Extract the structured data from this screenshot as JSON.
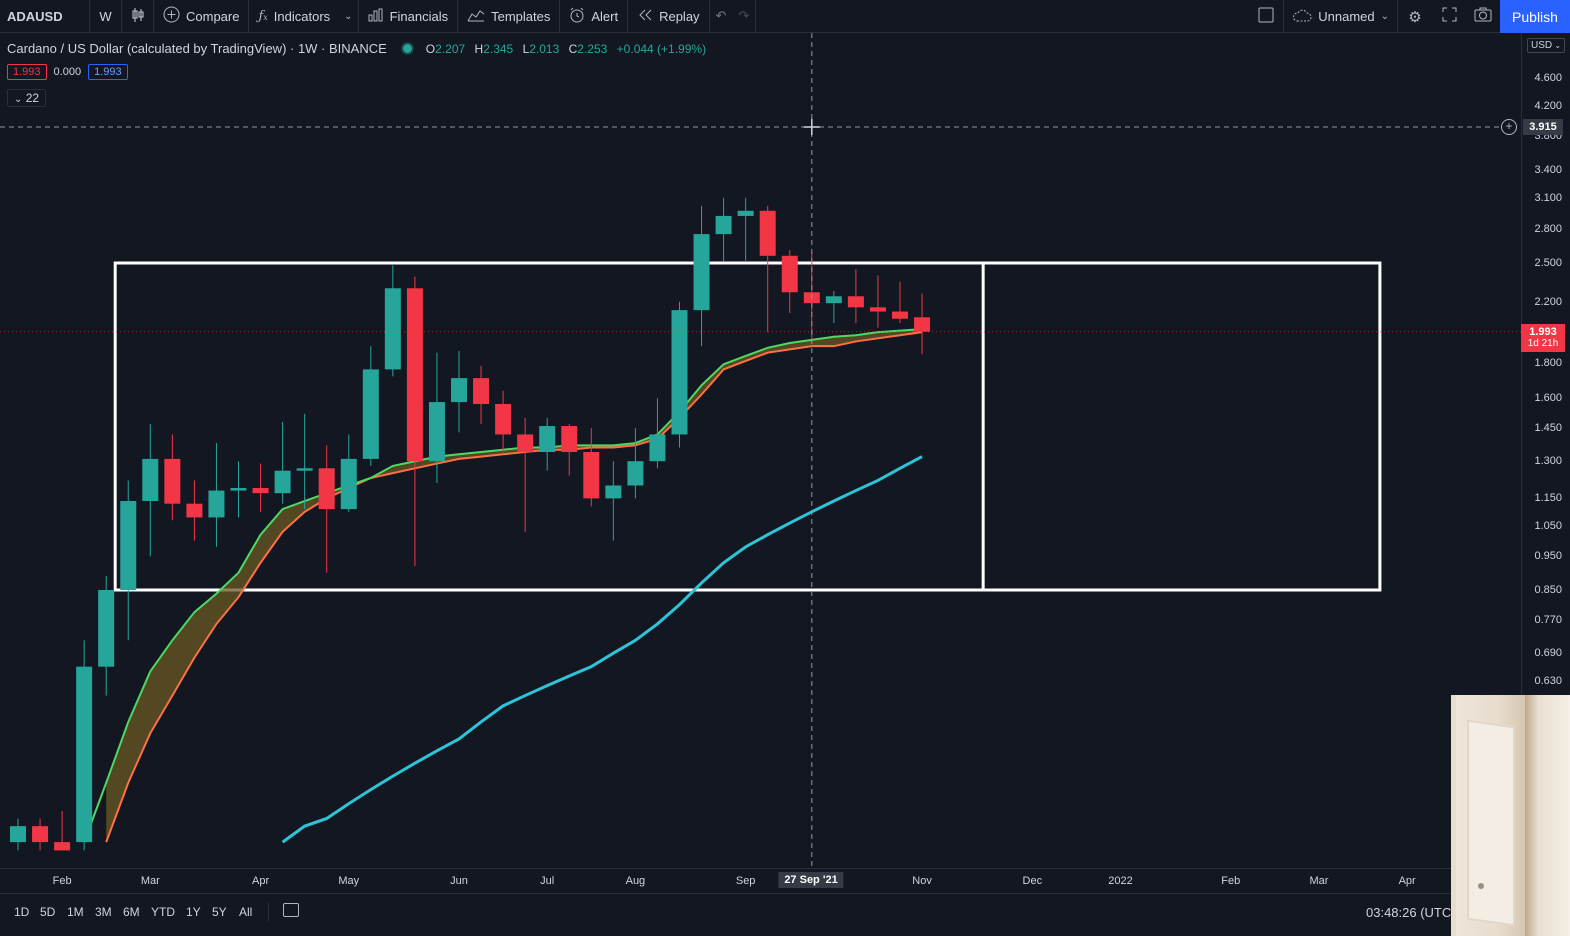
{
  "toolbar": {
    "symbol": "ADAUSD",
    "interval": "W",
    "compare_label": "Compare",
    "indicators_label": "Indicators",
    "financials_label": "Financials",
    "templates_label": "Templates",
    "alert_label": "Alert",
    "replay_label": "Replay",
    "layout_name": "Unnamed",
    "publish_label": "Publish"
  },
  "legend": {
    "title": "Cardano / US Dollar (calculated by TradingView) · 1W · BINANCE",
    "open_key": "O",
    "open": "2.207",
    "high_key": "H",
    "high": "2.345",
    "low_key": "L",
    "low": "2.013",
    "close_key": "C",
    "close": "2.253",
    "change": "+0.044 (+1.99%)",
    "indicator_values": [
      "1.993",
      "0.000",
      "1.993"
    ],
    "collapsed_count": "22"
  },
  "price_axis": {
    "currency": "USD",
    "crosshair_price": "3.915",
    "current_price": "1.993",
    "countdown": "1d 21h"
  },
  "time_axis": {
    "crosshair_date": "27 Sep '21"
  },
  "bottom": {
    "ranges": [
      "1D",
      "5D",
      "1M",
      "3M",
      "6M",
      "YTD",
      "1Y",
      "5Y",
      "All"
    ],
    "clock": "03:48:26 (UTC)"
  },
  "colors": {
    "background": "#131722",
    "up": "#26a69a",
    "down": "#f23645",
    "ema_fast": "#4cd964",
    "ema_slow": "#ff7043",
    "ribbon": "#6b5a23",
    "ma_long": "#2ec4d8",
    "rectangle": "#ffffff",
    "accent": "#2962ff"
  },
  "chart_data": {
    "type": "candlestick",
    "scale": "log",
    "x_labels": [
      "Feb",
      "Mar",
      "Apr",
      "May",
      "Jun",
      "Jul",
      "Aug",
      "Sep",
      "Nov",
      "Dec",
      "2022",
      "Feb",
      "Mar",
      "Apr"
    ],
    "y_ticks": [
      0.63,
      0.69,
      0.77,
      0.85,
      0.95,
      1.05,
      1.15,
      1.3,
      1.45,
      1.6,
      1.8,
      2.0,
      2.2,
      2.5,
      2.8,
      3.1,
      3.4,
      3.8,
      4.2,
      4.6
    ],
    "ylim": [
      0.37,
      5.1
    ],
    "weeks_from_first": [
      0,
      1,
      2,
      3,
      4,
      5,
      6,
      7,
      8,
      9,
      10,
      11,
      12,
      13,
      14,
      15,
      16,
      17,
      18,
      19,
      20,
      21,
      22,
      23,
      24,
      25,
      26,
      27,
      28,
      29,
      30,
      31,
      32,
      33,
      34,
      35,
      36,
      37,
      38,
      39,
      40,
      41
    ],
    "candles": [
      {
        "o": 0.37,
        "h": 0.4,
        "l": 0.36,
        "c": 0.39
      },
      {
        "o": 0.39,
        "h": 0.4,
        "l": 0.36,
        "c": 0.37
      },
      {
        "o": 0.37,
        "h": 0.41,
        "l": 0.36,
        "c": 0.36
      },
      {
        "o": 0.37,
        "h": 0.72,
        "l": 0.36,
        "c": 0.66
      },
      {
        "o": 0.66,
        "h": 0.89,
        "l": 0.6,
        "c": 0.85
      },
      {
        "o": 0.85,
        "h": 1.22,
        "l": 0.72,
        "c": 1.14
      },
      {
        "o": 1.14,
        "h": 1.47,
        "l": 0.95,
        "c": 1.31
      },
      {
        "o": 1.31,
        "h": 1.42,
        "l": 1.07,
        "c": 1.13
      },
      {
        "o": 1.13,
        "h": 1.22,
        "l": 1.0,
        "c": 1.08
      },
      {
        "o": 1.08,
        "h": 1.38,
        "l": 0.98,
        "c": 1.18
      },
      {
        "o": 1.18,
        "h": 1.3,
        "l": 1.08,
        "c": 1.19
      },
      {
        "o": 1.19,
        "h": 1.29,
        "l": 1.1,
        "c": 1.17
      },
      {
        "o": 1.17,
        "h": 1.48,
        "l": 1.13,
        "c": 1.26
      },
      {
        "o": 1.26,
        "h": 1.52,
        "l": 1.11,
        "c": 1.27
      },
      {
        "o": 1.27,
        "h": 1.37,
        "l": 0.9,
        "c": 1.11
      },
      {
        "o": 1.11,
        "h": 1.42,
        "l": 1.1,
        "c": 1.31
      },
      {
        "o": 1.31,
        "h": 1.9,
        "l": 1.28,
        "c": 1.76
      },
      {
        "o": 1.76,
        "h": 2.48,
        "l": 1.72,
        "c": 2.3
      },
      {
        "o": 2.3,
        "h": 2.39,
        "l": 0.92,
        "c": 1.3
      },
      {
        "o": 1.3,
        "h": 1.86,
        "l": 1.21,
        "c": 1.58
      },
      {
        "o": 1.58,
        "h": 1.87,
        "l": 1.43,
        "c": 1.71
      },
      {
        "o": 1.71,
        "h": 1.78,
        "l": 1.47,
        "c": 1.57
      },
      {
        "o": 1.57,
        "h": 1.64,
        "l": 1.34,
        "c": 1.42
      },
      {
        "o": 1.42,
        "h": 1.5,
        "l": 1.03,
        "c": 1.34
      },
      {
        "o": 1.34,
        "h": 1.5,
        "l": 1.26,
        "c": 1.46
      },
      {
        "o": 1.46,
        "h": 1.47,
        "l": 1.24,
        "c": 1.34
      },
      {
        "o": 1.34,
        "h": 1.45,
        "l": 1.12,
        "c": 1.15
      },
      {
        "o": 1.15,
        "h": 1.3,
        "l": 1.0,
        "c": 1.2
      },
      {
        "o": 1.2,
        "h": 1.45,
        "l": 1.15,
        "c": 1.3
      },
      {
        "o": 1.3,
        "h": 1.6,
        "l": 1.27,
        "c": 1.42
      },
      {
        "o": 1.42,
        "h": 2.2,
        "l": 1.36,
        "c": 2.14
      },
      {
        "o": 2.14,
        "h": 3.02,
        "l": 1.9,
        "c": 2.75
      },
      {
        "o": 2.75,
        "h": 3.1,
        "l": 2.51,
        "c": 2.92
      },
      {
        "o": 2.92,
        "h": 3.1,
        "l": 2.52,
        "c": 2.97
      },
      {
        "o": 2.97,
        "h": 3.02,
        "l": 1.99,
        "c": 2.56
      },
      {
        "o": 2.56,
        "h": 2.61,
        "l": 2.12,
        "c": 2.27
      },
      {
        "o": 2.27,
        "h": 2.58,
        "l": 1.92,
        "c": 2.19
      },
      {
        "o": 2.19,
        "h": 2.28,
        "l": 2.05,
        "c": 2.24
      },
      {
        "o": 2.24,
        "h": 2.45,
        "l": 2.05,
        "c": 2.16
      },
      {
        "o": 2.16,
        "h": 2.4,
        "l": 2.02,
        "c": 2.13
      },
      {
        "o": 2.13,
        "h": 2.35,
        "l": 2.05,
        "c": 2.08
      },
      {
        "o": 2.09,
        "h": 2.26,
        "l": 1.85,
        "c": 1.993
      }
    ],
    "series": [
      {
        "values": [
          null,
          null,
          null,
          0.37,
          0.45,
          0.55,
          0.65,
          0.72,
          0.79,
          0.84,
          0.9,
          1.02,
          1.11,
          1.14,
          1.17,
          1.2,
          1.23,
          1.28,
          1.3,
          1.32,
          1.33,
          1.34,
          1.35,
          1.36,
          1.36,
          1.37,
          1.37,
          1.37,
          1.38,
          1.42,
          1.53,
          1.67,
          1.79,
          1.84,
          1.89,
          1.92,
          1.94,
          1.96,
          1.97,
          1.99,
          2.0,
          2.01
        ]
      },
      {
        "values": [
          null,
          null,
          null,
          null,
          0.37,
          0.45,
          0.53,
          0.6,
          0.68,
          0.76,
          0.83,
          0.93,
          1.03,
          1.1,
          1.15,
          1.19,
          1.23,
          1.25,
          1.27,
          1.29,
          1.31,
          1.32,
          1.33,
          1.34,
          1.35,
          1.35,
          1.36,
          1.36,
          1.37,
          1.4,
          1.5,
          1.62,
          1.76,
          1.81,
          1.86,
          1.88,
          1.9,
          1.9,
          1.93,
          1.95,
          1.97,
          1.99
        ]
      },
      {
        "values": [
          null,
          null,
          null,
          null,
          null,
          null,
          null,
          null,
          null,
          null,
          null,
          null,
          0.37,
          0.39,
          0.4,
          0.42,
          0.44,
          0.46,
          0.48,
          0.5,
          0.52,
          0.55,
          0.58,
          0.6,
          0.62,
          0.64,
          0.66,
          0.69,
          0.72,
          0.76,
          0.81,
          0.87,
          0.93,
          0.98,
          1.02,
          1.06,
          1.1,
          1.14,
          1.18,
          1.22,
          1.27,
          1.32
        ]
      }
    ],
    "rectangle": {
      "top": 2.5,
      "bottom": 0.85,
      "from_week": 4,
      "to_week": 58,
      "divider_week": 43
    },
    "crosshair": {
      "price": 3.915,
      "week": 36
    }
  }
}
